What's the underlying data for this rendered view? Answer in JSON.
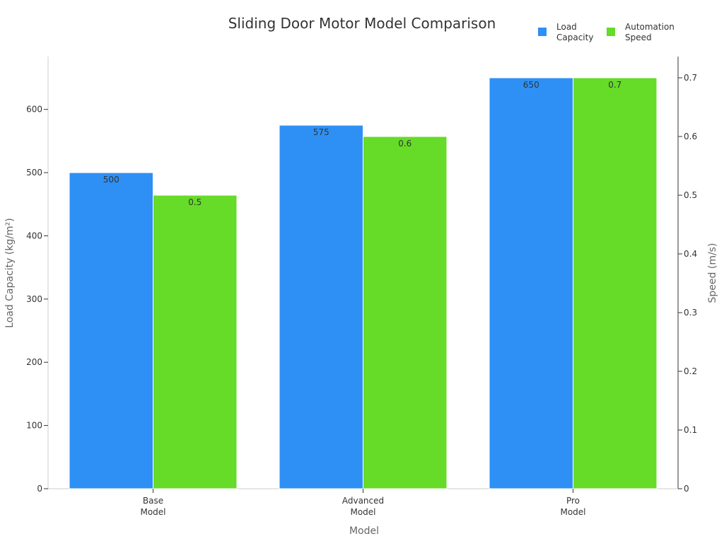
{
  "chart_data": {
    "type": "bar",
    "title": "Sliding Door Motor Model Comparison",
    "categories": [
      [
        "Base",
        "Model"
      ],
      [
        "Advanced",
        "Model"
      ],
      [
        "Pro",
        "Model"
      ]
    ],
    "xlabel": "Model",
    "ylabel_left": "Load Capacity (kg/m²)",
    "ylabel_right": "Speed (m/s)",
    "y_left": {
      "min": 0,
      "max": 650,
      "ticks": [
        0,
        100,
        200,
        300,
        400,
        500,
        600
      ]
    },
    "y_right": {
      "min": 0,
      "max": 0.7,
      "ticks": [
        0,
        0.1,
        0.2,
        0.3,
        0.4,
        0.5,
        0.6,
        0.7
      ]
    },
    "series": [
      {
        "name": [
          "Load",
          "Capacity"
        ],
        "axis": "left",
        "color": "#2e90f5",
        "values": [
          500,
          575,
          650
        ],
        "labels": [
          "500",
          "575",
          "650"
        ]
      },
      {
        "name": [
          "Automation",
          "Speed"
        ],
        "axis": "right",
        "color": "#66db28",
        "values": [
          0.5,
          0.6,
          0.7
        ],
        "labels": [
          "0.5",
          "0.6",
          "0.7"
        ]
      }
    ],
    "legend_position": "top-right",
    "grid": false
  }
}
